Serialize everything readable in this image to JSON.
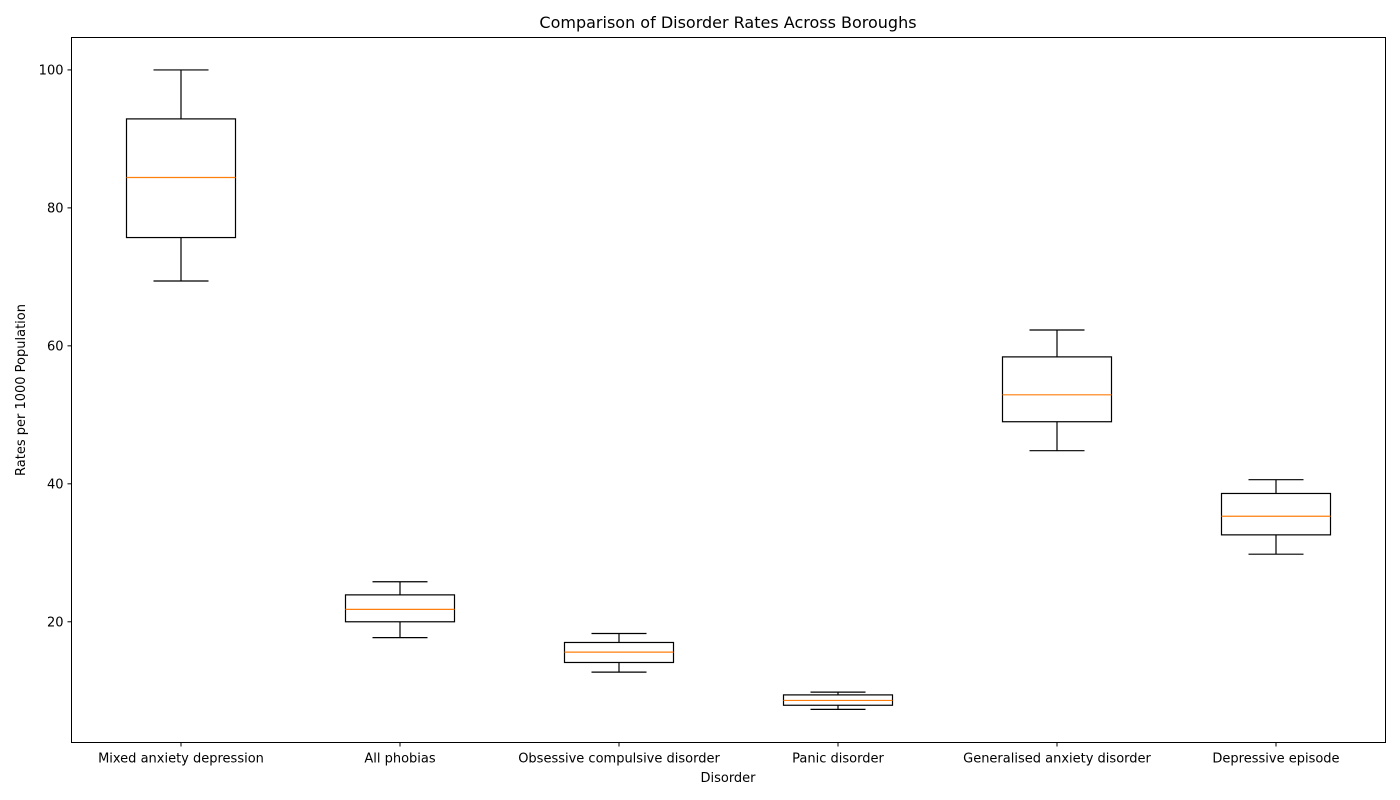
{
  "chart_data": {
    "type": "box",
    "title": "Comparison of Disorder Rates Across Boroughs",
    "xlabel": "Disorder",
    "ylabel": "Rates per 1000 Population",
    "ylim": [
      2.5,
      104.7
    ],
    "yticks": [
      20,
      40,
      60,
      80,
      100
    ],
    "grid": false,
    "categories": [
      "Mixed anxiety depression",
      "All phobias",
      "Obsessive compulsive disorder",
      "Panic disorder",
      "Generalised anxiety disorder",
      "Depressive episode"
    ],
    "boxes": [
      {
        "whisker_low": 69.4,
        "q1": 75.7,
        "median": 84.4,
        "q3": 92.9,
        "whisker_high": 100.0
      },
      {
        "whisker_low": 17.7,
        "q1": 20.0,
        "median": 21.8,
        "q3": 23.9,
        "whisker_high": 25.8
      },
      {
        "whisker_low": 12.7,
        "q1": 14.1,
        "median": 15.6,
        "q3": 17.0,
        "whisker_high": 18.3
      },
      {
        "whisker_low": 7.3,
        "q1": 7.9,
        "median": 8.6,
        "q3": 9.4,
        "whisker_high": 9.8
      },
      {
        "whisker_low": 44.8,
        "q1": 49.0,
        "median": 52.9,
        "q3": 58.4,
        "whisker_high": 62.3
      },
      {
        "whisker_low": 29.8,
        "q1": 32.6,
        "median": 35.3,
        "q3": 38.6,
        "whisker_high": 40.6
      }
    ],
    "colors": {
      "box": "#000000",
      "median": "#ff7f0e",
      "background": "#ffffff"
    }
  }
}
